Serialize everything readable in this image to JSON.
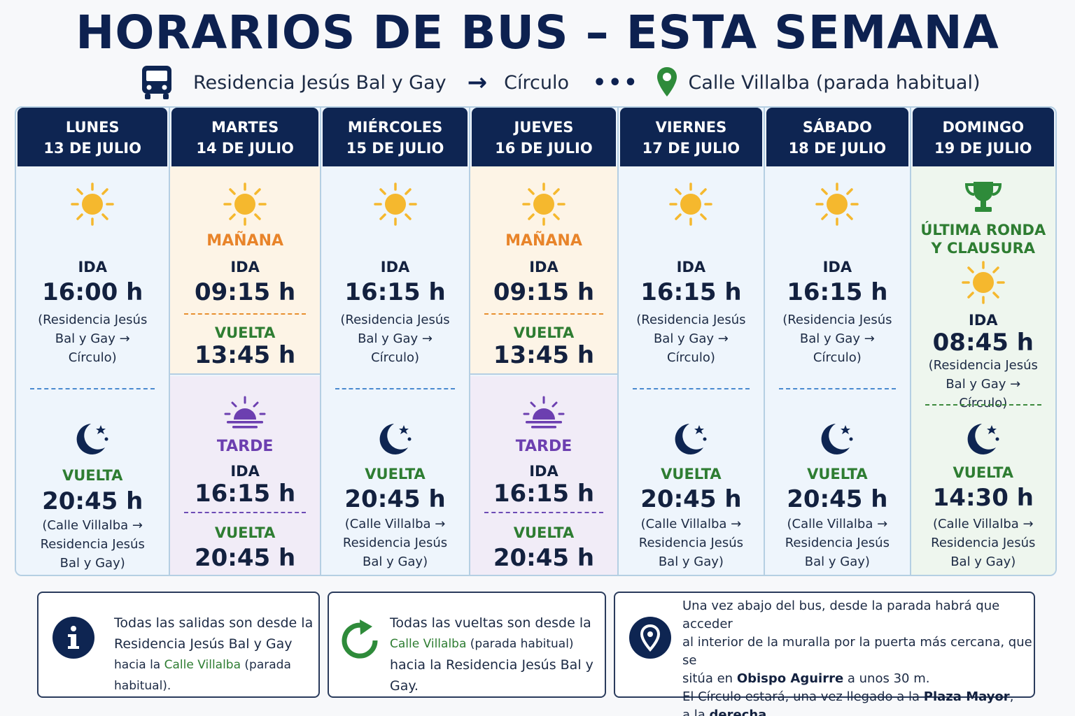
{
  "title": "HORARIOS DE BUS – ESTA SEMANA",
  "route": {
    "origin": "Residencia Jesús Bal y Gay",
    "destination": "Círculo",
    "stop": "Calle Villalba (parada habitual)"
  },
  "colors": {
    "navy": "#0e2552",
    "orange": "#e8842a",
    "purple": "#6c3fb0",
    "green": "#2e7d32",
    "sun": "#f5b82e"
  },
  "days": [
    {
      "name": "LUNES",
      "date": "13 DE JULIO",
      "ida_label": "IDA",
      "ida_time": "16:00 h",
      "ida_route": "(Residencia Jesús Bal y Gay → Círculo)",
      "vuelta_label": "VUELTA",
      "vuelta_time": "20:45 h",
      "vuelta_route": "(Calle Villalba → Residencia Jesús Bal y Gay)"
    },
    {
      "name": "MARTES",
      "date": "14 DE JULIO",
      "morning_label": "MAÑANA",
      "m_ida_label": "IDA",
      "m_ida_time": "09:15 h",
      "m_vuelta_label": "VUELTA",
      "m_vuelta_time": "13:45 h",
      "afternoon_label": "TARDE",
      "t_ida_label": "IDA",
      "t_ida_time": "16:15 h",
      "t_vuelta_label": "VUELTA",
      "t_vuelta_time": "20:45 h"
    },
    {
      "name": "MIÉRCOLES",
      "date": "15 DE JULIO",
      "ida_label": "IDA",
      "ida_time": "16:15 h",
      "ida_route": "(Residencia Jesús Bal y Gay → Círculo)",
      "vuelta_label": "VUELTA",
      "vuelta_time": "20:45 h",
      "vuelta_route": "(Calle Villalba → Residencia Jesús Bal y Gay)"
    },
    {
      "name": "JUEVES",
      "date": "16 DE JULIO",
      "morning_label": "MAÑANA",
      "m_ida_label": "IDA",
      "m_ida_time": "09:15 h",
      "m_vuelta_label": "VUELTA",
      "m_vuelta_time": "13:45 h",
      "afternoon_label": "TARDE",
      "t_ida_label": "IDA",
      "t_ida_time": "16:15 h",
      "t_vuelta_label": "VUELTA",
      "t_vuelta_time": "20:45 h"
    },
    {
      "name": "VIERNES",
      "date": "17 DE JULIO",
      "ida_label": "IDA",
      "ida_time": "16:15 h",
      "ida_route": "(Residencia Jesús Bal y Gay → Círculo)",
      "vuelta_label": "VUELTA",
      "vuelta_time": "20:45 h",
      "vuelta_route": "(Calle Villalba → Residencia Jesús Bal y Gay)"
    },
    {
      "name": "SÁBADO",
      "date": "18 DE JULIO",
      "ida_label": "IDA",
      "ida_time": "16:15 h",
      "ida_route": "(Residencia Jesús Bal y Gay → Círculo)",
      "vuelta_label": "VUELTA",
      "vuelta_time": "20:45 h",
      "vuelta_route": "(Calle Villalba → Residencia Jesús Bal y Gay)"
    },
    {
      "name": "DOMINGO",
      "date": "19 DE JULIO",
      "special_line1": "ÚLTIMA RONDA",
      "special_line2": "Y CLAUSURA",
      "ida_label": "IDA",
      "ida_time": "08:45 h",
      "ida_route": "(Residencia Jesús Bal y Gay → Círculo)",
      "vuelta_label": "VUELTA",
      "vuelta_time": "14:30 h",
      "vuelta_route": "(Calle Villalba → Residencia Jesús Bal y Gay)"
    }
  ],
  "notes": {
    "n1": {
      "line1": "Todas las salidas son desde la",
      "line2": "Residencia Jesús Bal y Gay",
      "line3a": "hacia la ",
      "line3b": "Calle Villalba",
      "line3c": " (parada habitual)."
    },
    "n2": {
      "line1": "Todas las vueltas son desde la",
      "line2a": "Calle Villalba",
      "line2b": " (parada habitual)",
      "line3": "hacia la Residencia Jesús Bal y Gay."
    },
    "n3": {
      "line1": "Una vez abajo del bus, desde la parada habrá que acceder",
      "line2": "al interior de la muralla por la puerta más cercana, que se",
      "line3a": "sitúa en ",
      "line3b": "Obispo Aguirre",
      "line3c": " a unos 30 m.",
      "line4a": "El Círculo estará, una vez llegado a la ",
      "line4b": "Plaza Mayor",
      "line4c": ",",
      "line5a": "a la ",
      "line5b": "derecha",
      "line5c": "."
    }
  }
}
